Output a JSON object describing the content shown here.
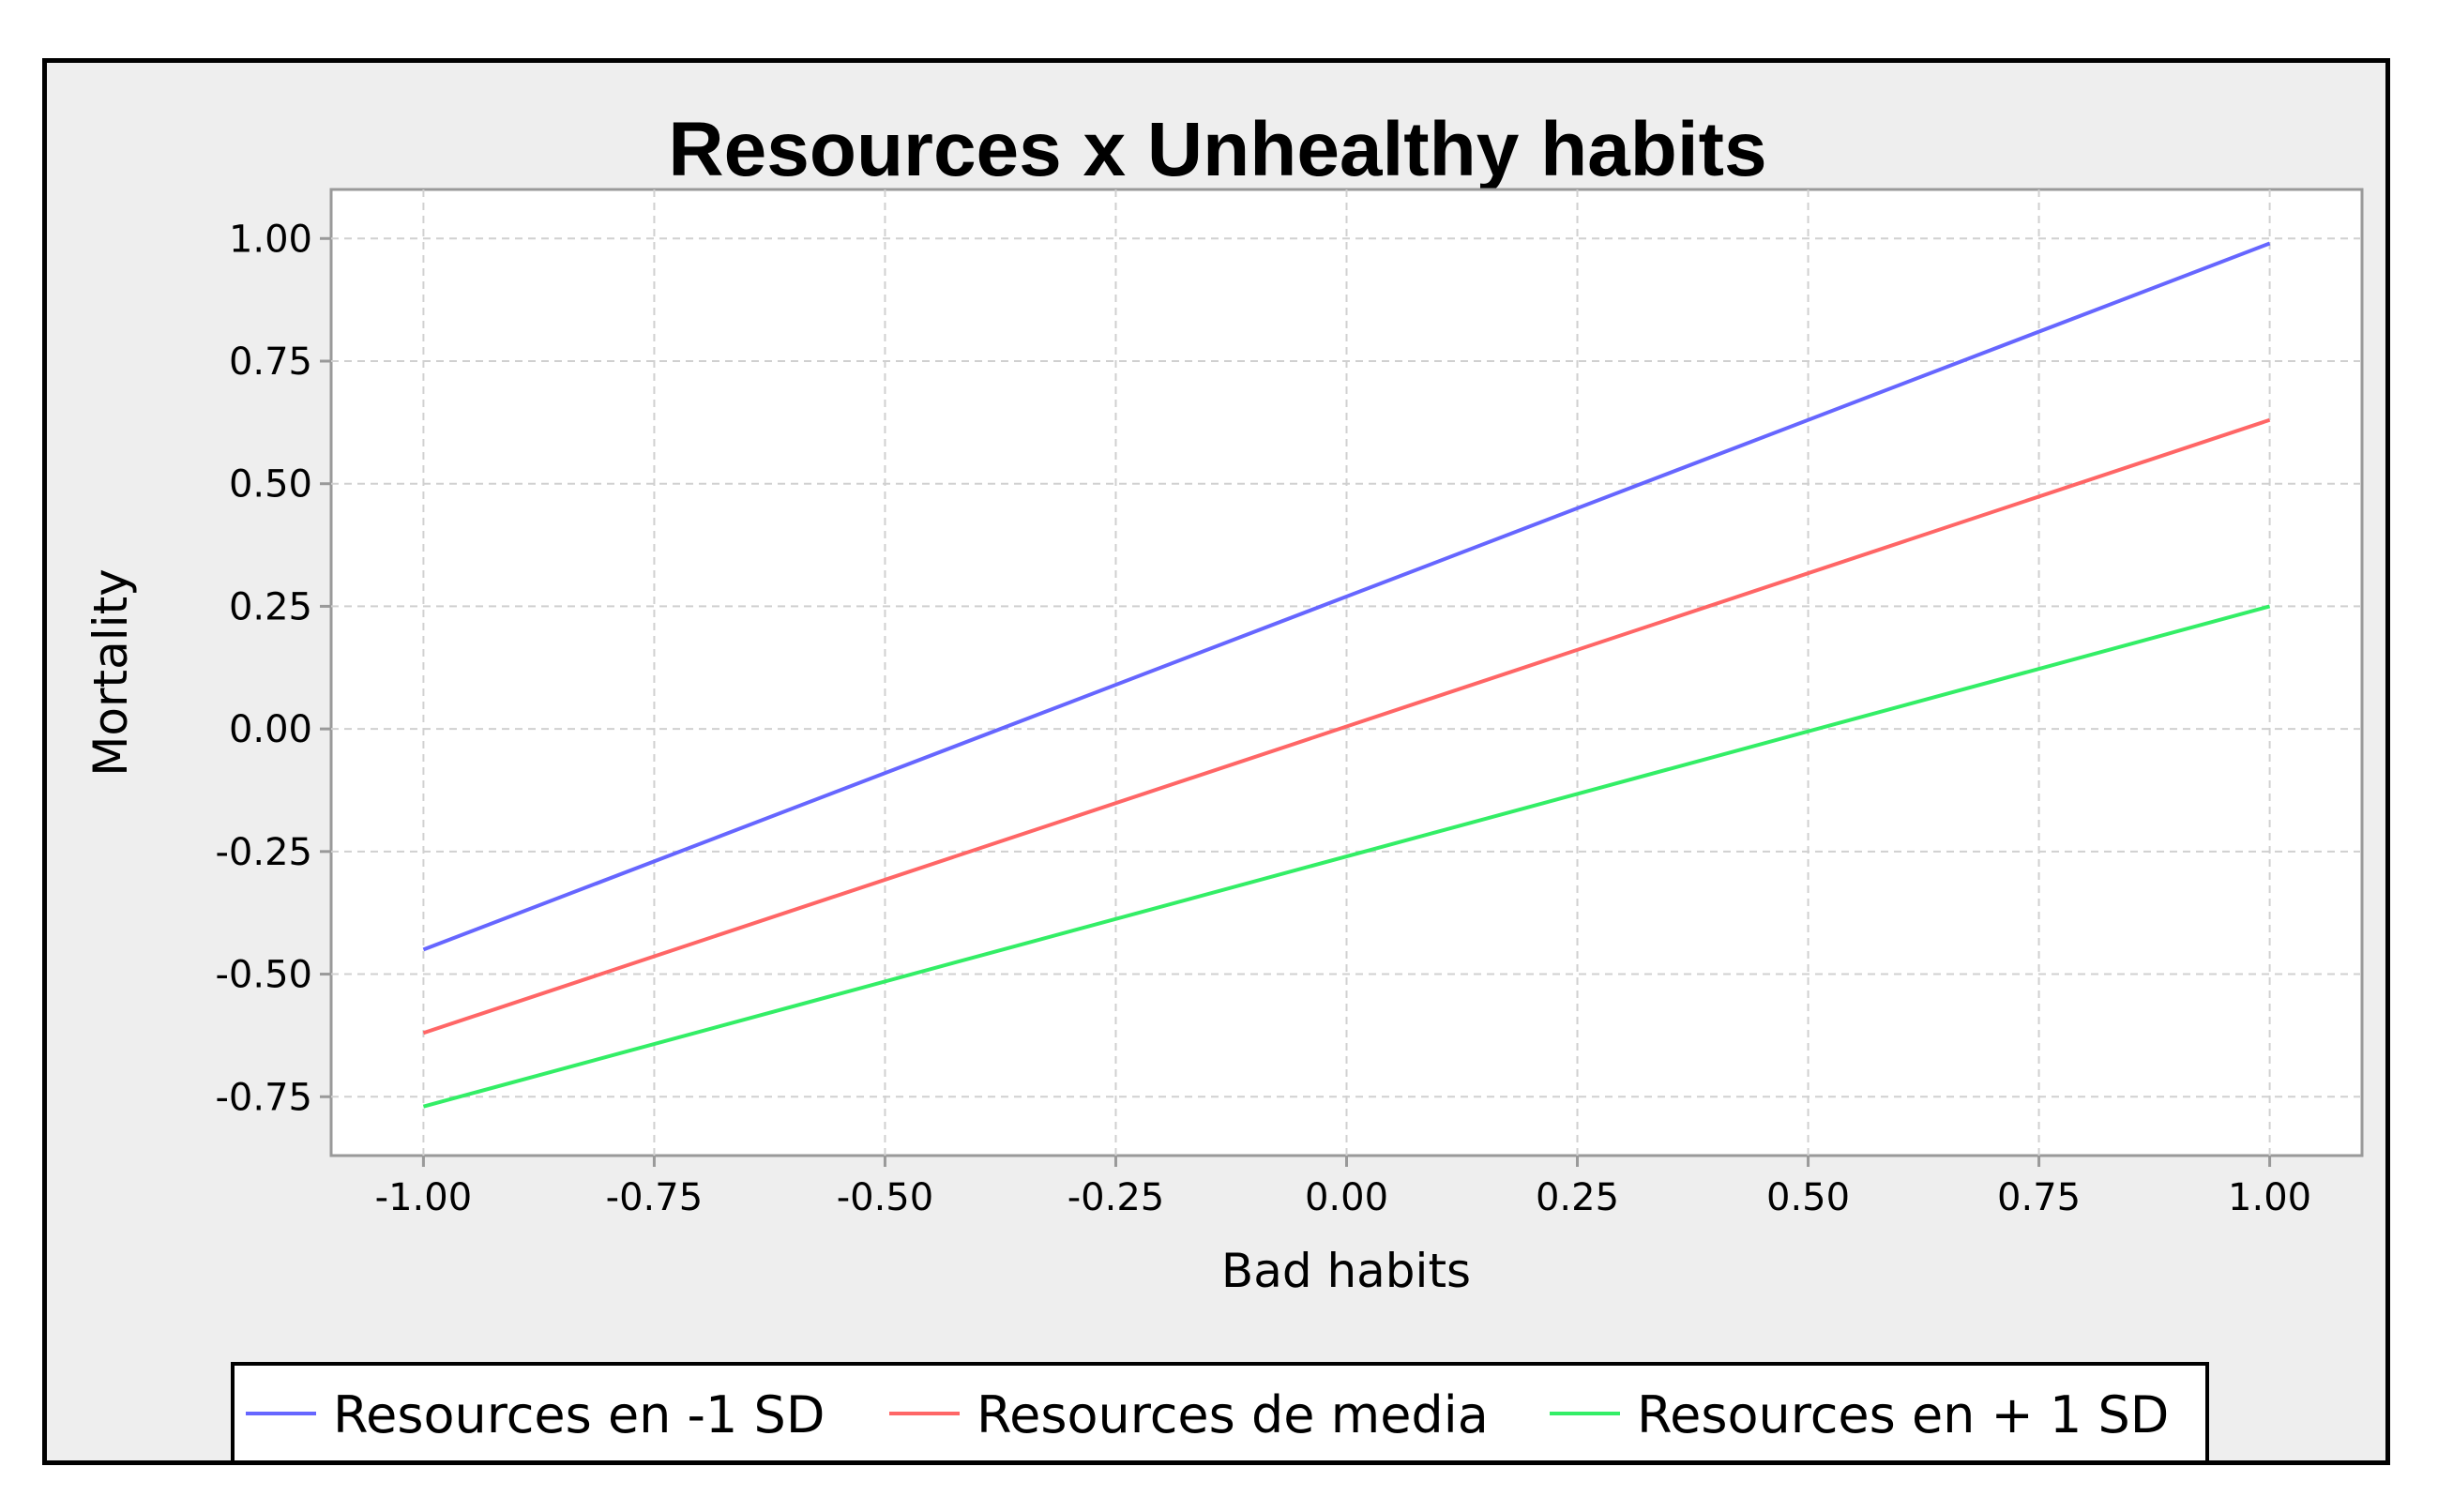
{
  "chart_data": {
    "type": "line",
    "title": "Resources x Unhealthy habits",
    "xlabel": "Bad habits",
    "ylabel": "Mortality",
    "xlim": [
      -1.1,
      1.1
    ],
    "ylim": [
      -0.87,
      1.1
    ],
    "x_ticks": [
      -1.0,
      -0.75,
      -0.5,
      -0.25,
      0.0,
      0.25,
      0.5,
      0.75,
      1.0
    ],
    "y_ticks": [
      1.0,
      0.75,
      0.5,
      0.25,
      0.0,
      -0.25,
      -0.5,
      -0.75
    ],
    "x_tick_labels": [
      "-1.00",
      "-0.75",
      "-0.50",
      "-0.25",
      "0.00",
      "0.25",
      "0.50",
      "0.75",
      "1.00"
    ],
    "y_tick_labels": [
      "1.00",
      "0.75",
      "0.50",
      "0.25",
      "0.00",
      "-0.25",
      "-0.50",
      "-0.75"
    ],
    "grid": true,
    "legend_position": "bottom",
    "series": [
      {
        "name": "Resources en -1 SD",
        "color": "#6666ff",
        "x": [
          -1.0,
          1.0
        ],
        "y": [
          -0.45,
          0.99
        ]
      },
      {
        "name": "Resources de media",
        "color": "#ff6666",
        "x": [
          -1.0,
          1.0
        ],
        "y": [
          -0.62,
          0.63
        ]
      },
      {
        "name": "Resources en + 1 SD",
        "color": "#33ee66",
        "x": [
          -1.0,
          1.0
        ],
        "y": [
          -0.77,
          0.25
        ]
      }
    ]
  }
}
